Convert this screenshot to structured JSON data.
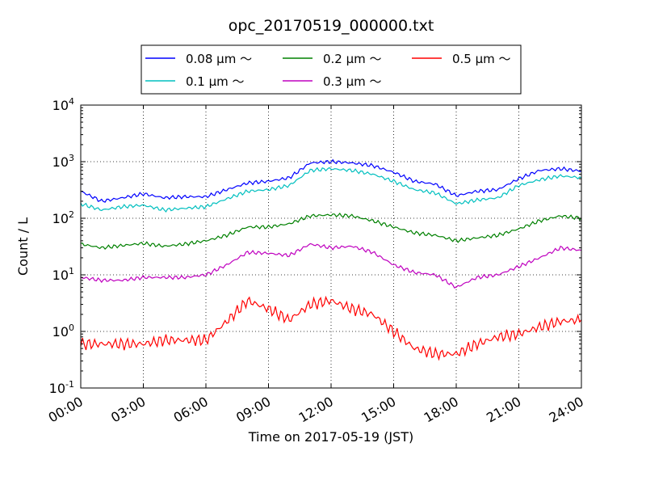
{
  "chart_data": {
    "type": "line",
    "title": "opc_20170519_000000.txt",
    "xlabel": "Time on 2017-05-19 (JST)",
    "ylabel": "Count / L",
    "y_scale": "log",
    "ylim": [
      0.1,
      10000
    ],
    "xlim": [
      "00:00",
      "24:00"
    ],
    "grid": true,
    "legend_position": "top",
    "x_tick_labels": [
      "00:00",
      "03:00",
      "06:00",
      "09:00",
      "12:00",
      "15:00",
      "18:00",
      "21:00",
      "24:00"
    ],
    "y_ticks": [
      {
        "value": 0.1,
        "base": "10",
        "exp": "-1"
      },
      {
        "value": 1,
        "base": "10",
        "exp": "0"
      },
      {
        "value": 10,
        "base": "10",
        "exp": "1"
      },
      {
        "value": 100,
        "base": "10",
        "exp": "2"
      },
      {
        "value": 1000,
        "base": "10",
        "exp": "3"
      },
      {
        "value": 10000,
        "base": "10",
        "exp": "4"
      }
    ],
    "x": [
      "00:00",
      "01:00",
      "02:00",
      "03:00",
      "04:00",
      "05:00",
      "06:00",
      "07:00",
      "08:00",
      "09:00",
      "10:00",
      "11:00",
      "12:00",
      "13:00",
      "14:00",
      "15:00",
      "16:00",
      "17:00",
      "18:00",
      "19:00",
      "20:00",
      "21:00",
      "22:00",
      "23:00",
      "24:00"
    ],
    "series": [
      {
        "name": "0.08 μm ～",
        "color": "#0000ff",
        "values": [
          300,
          200,
          230,
          270,
          230,
          240,
          240,
          320,
          420,
          450,
          520,
          950,
          1000,
          950,
          850,
          650,
          450,
          400,
          250,
          300,
          320,
          500,
          700,
          750,
          680
        ]
      },
      {
        "name": "0.1 μm ～",
        "color": "#00bfbf",
        "values": [
          180,
          140,
          160,
          170,
          140,
          150,
          160,
          220,
          300,
          320,
          380,
          700,
          750,
          700,
          600,
          450,
          320,
          280,
          180,
          210,
          230,
          380,
          480,
          560,
          520
        ]
      },
      {
        "name": "0.2 μm ～",
        "color": "#008000",
        "values": [
          35,
          30,
          33,
          36,
          32,
          35,
          40,
          50,
          70,
          70,
          80,
          110,
          115,
          110,
          90,
          70,
          55,
          50,
          40,
          45,
          50,
          65,
          90,
          110,
          100
        ]
      },
      {
        "name": "0.3 μm ～",
        "color": "#bf00bf",
        "values": [
          9,
          8,
          8,
          9,
          9,
          9,
          10,
          15,
          25,
          24,
          22,
          35,
          30,
          32,
          25,
          15,
          11,
          10,
          6,
          9,
          10,
          14,
          20,
          30,
          27
        ]
      },
      {
        "name": "0.5 μm ～",
        "color": "#ff0000",
        "values": [
          0.6,
          0.6,
          0.6,
          0.6,
          0.7,
          0.7,
          0.7,
          1.5,
          3.5,
          2.5,
          1.6,
          3.0,
          3.5,
          2.5,
          2.0,
          1.0,
          0.5,
          0.4,
          0.4,
          0.6,
          0.8,
          0.9,
          1.2,
          1.5,
          1.6
        ]
      }
    ]
  }
}
